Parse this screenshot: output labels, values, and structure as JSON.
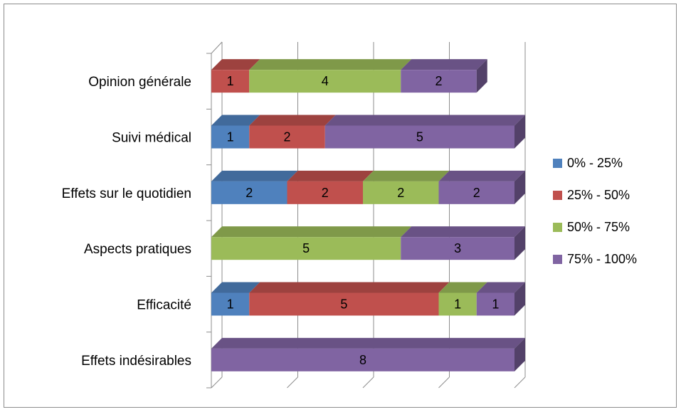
{
  "chart_data": {
    "type": "bar",
    "orientation": "horizontal",
    "stacked": true,
    "three_d": true,
    "categories": [
      "Opinion générale",
      "Suivi médical",
      "Effets sur le quotidien",
      "Aspects pratiques",
      "Efficacité",
      "Effets indésirables"
    ],
    "series": [
      {
        "name": "0% - 25%",
        "color": "#4f81bd",
        "values": [
          0,
          1,
          2,
          0,
          1,
          0
        ]
      },
      {
        "name": "25% - 50%",
        "color": "#c0504d",
        "values": [
          1,
          2,
          2,
          0,
          5,
          0
        ]
      },
      {
        "name": "50% - 75%",
        "color": "#9bbb59",
        "values": [
          4,
          0,
          2,
          5,
          1,
          0
        ]
      },
      {
        "name": "75% - 100%",
        "color": "#8064a2",
        "values": [
          2,
          5,
          2,
          3,
          1,
          8
        ]
      }
    ],
    "xlim": [
      0,
      8
    ],
    "grid": true,
    "legend_position": "right"
  }
}
